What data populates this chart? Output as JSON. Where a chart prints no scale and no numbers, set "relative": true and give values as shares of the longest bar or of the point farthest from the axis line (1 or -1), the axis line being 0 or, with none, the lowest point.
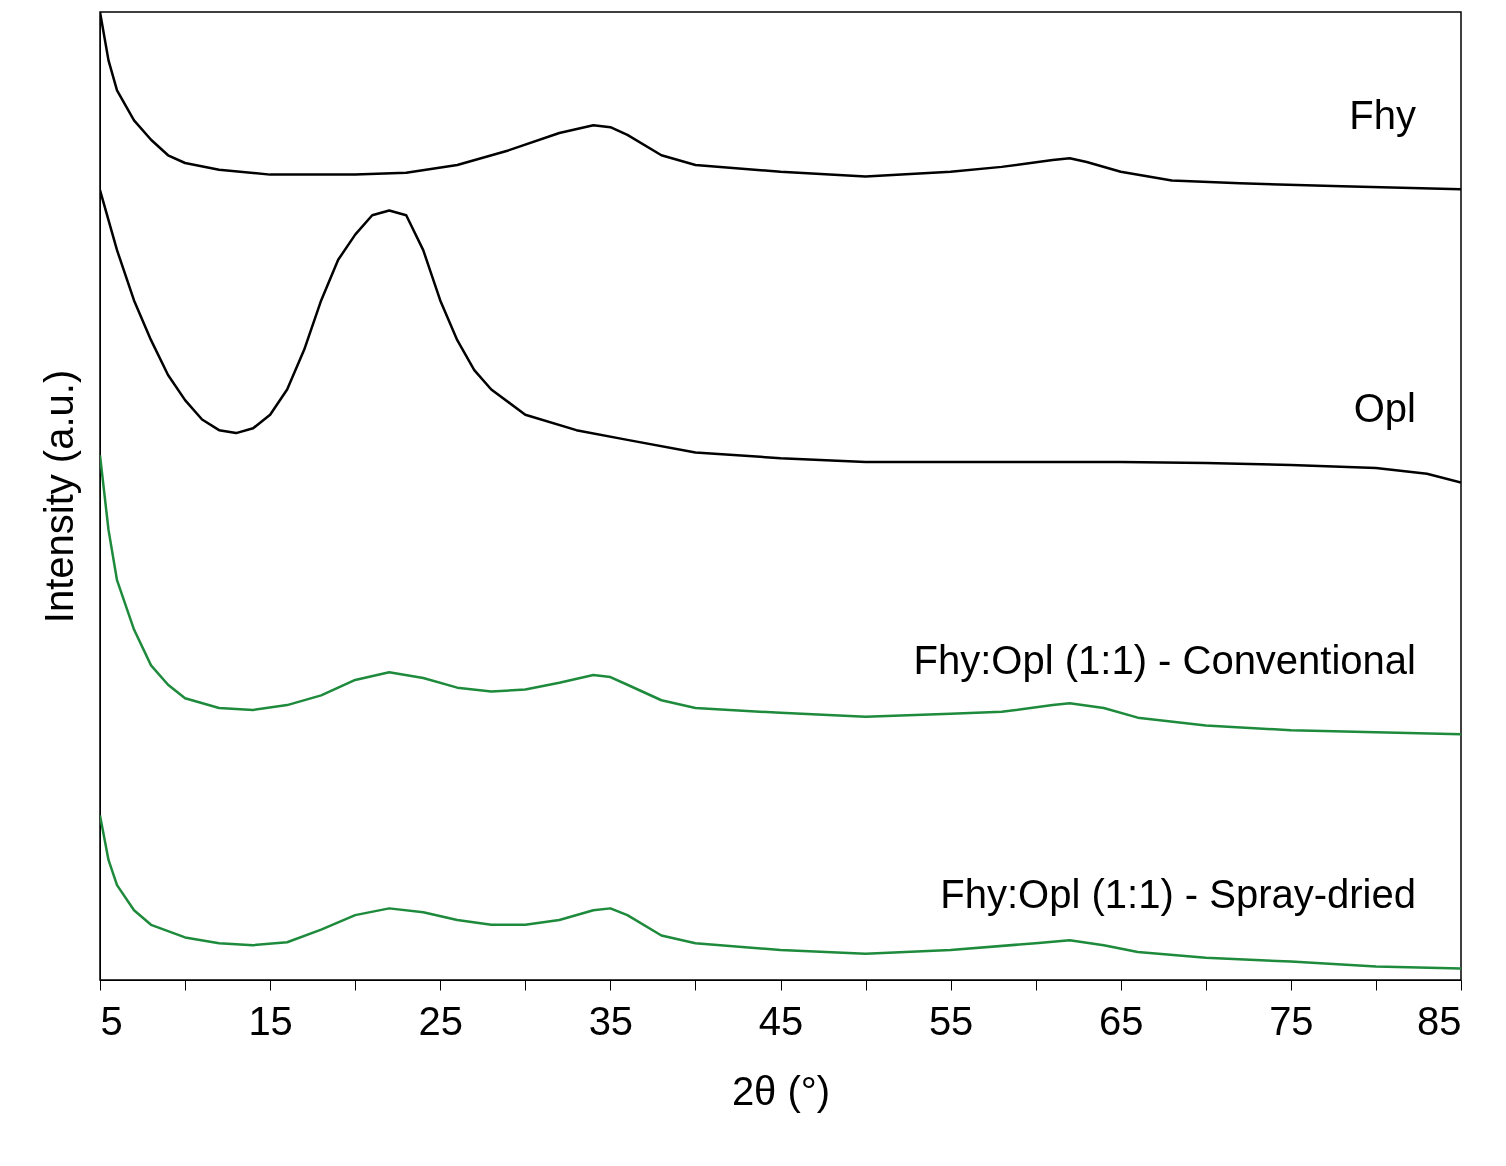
{
  "chart_data": {
    "type": "line",
    "relative": true,
    "xlabel": "2θ (°)",
    "ylabel": "Intensity (a.u.)",
    "xlim": [
      5,
      85
    ],
    "xticks": [
      5,
      {
        "value": 10,
        "label": null
      },
      15,
      {
        "value": 20,
        "label": null
      },
      25,
      {
        "value": 30,
        "label": null
      },
      35,
      {
        "value": 40,
        "label": null
      },
      45,
      {
        "value": 50,
        "label": null
      },
      55,
      {
        "value": 60,
        "label": null
      },
      65,
      {
        "value": 70,
        "label": null
      },
      75,
      {
        "value": 80,
        "label": null
      },
      85
    ],
    "grid": false,
    "legend": false,
    "marker": "none",
    "line_style": "solid",
    "tick_labels": "x",
    "series": [
      {
        "name": "Fhy",
        "color": "#000000",
        "x": [
          5,
          5.5,
          6,
          7,
          8,
          9,
          10,
          12,
          15,
          20,
          23,
          26,
          29,
          32,
          34,
          35,
          36,
          38,
          40,
          45,
          50,
          55,
          58,
          61,
          62,
          63,
          65,
          68,
          72,
          78,
          85
        ],
        "values": [
          1.0,
          0.95,
          0.919,
          0.888,
          0.868,
          0.852,
          0.844,
          0.837,
          0.832,
          0.832,
          0.834,
          0.842,
          0.857,
          0.875,
          0.883,
          0.881,
          0.873,
          0.852,
          0.842,
          0.835,
          0.83,
          0.835,
          0.84,
          0.847,
          0.849,
          0.845,
          0.835,
          0.826,
          0.823,
          0.82,
          0.817
        ]
      },
      {
        "name": "Opl",
        "color": "#000000",
        "x": [
          5,
          6,
          7,
          8,
          9,
          10,
          11,
          12,
          13,
          14,
          15,
          16,
          17,
          18,
          19,
          20,
          21,
          22,
          23,
          24,
          25,
          26,
          27,
          28,
          30,
          33,
          36,
          40,
          45,
          50,
          55,
          60,
          65,
          70,
          75,
          80,
          83,
          85
        ],
        "values": [
          0.816,
          0.754,
          0.702,
          0.661,
          0.625,
          0.599,
          0.579,
          0.568,
          0.565,
          0.57,
          0.584,
          0.61,
          0.651,
          0.702,
          0.744,
          0.77,
          0.79,
          0.795,
          0.79,
          0.754,
          0.702,
          0.661,
          0.63,
          0.61,
          0.584,
          0.568,
          0.558,
          0.545,
          0.539,
          0.535,
          0.535,
          0.535,
          0.535,
          0.534,
          0.532,
          0.529,
          0.523,
          0.514
        ]
      },
      {
        "name": "Fhy:Opl (1:1) - Conventional",
        "color": "#1e8a3c",
        "x": [
          5,
          5.5,
          6,
          7,
          8,
          9,
          10,
          12,
          14,
          16,
          18,
          20,
          22,
          24,
          26,
          28,
          30,
          32,
          34,
          35,
          36,
          38,
          40,
          45,
          50,
          55,
          58,
          61,
          62,
          64,
          66,
          70,
          75,
          80,
          85
        ],
        "values": [
          0.542,
          0.465,
          0.413,
          0.362,
          0.325,
          0.305,
          0.291,
          0.281,
          0.279,
          0.284,
          0.294,
          0.31,
          0.318,
          0.312,
          0.302,
          0.298,
          0.3,
          0.307,
          0.315,
          0.313,
          0.305,
          0.289,
          0.281,
          0.276,
          0.272,
          0.275,
          0.277,
          0.284,
          0.286,
          0.281,
          0.271,
          0.263,
          0.258,
          0.256,
          0.254
        ]
      },
      {
        "name": "Fhy:Opl (1:1) - Spray-dried",
        "color": "#1e8a3c",
        "x": [
          5,
          5.5,
          6,
          7,
          8,
          10,
          12,
          14,
          16,
          18,
          20,
          22,
          24,
          26,
          28,
          30,
          32,
          34,
          35,
          36,
          38,
          40,
          45,
          50,
          55,
          60,
          62,
          64,
          66,
          70,
          75,
          80,
          85
        ],
        "values": [
          0.17,
          0.124,
          0.098,
          0.072,
          0.057,
          0.044,
          0.038,
          0.036,
          0.039,
          0.052,
          0.067,
          0.074,
          0.07,
          0.062,
          0.057,
          0.057,
          0.062,
          0.072,
          0.074,
          0.067,
          0.046,
          0.038,
          0.031,
          0.027,
          0.031,
          0.038,
          0.041,
          0.036,
          0.029,
          0.023,
          0.019,
          0.014,
          0.012
        ]
      }
    ]
  }
}
